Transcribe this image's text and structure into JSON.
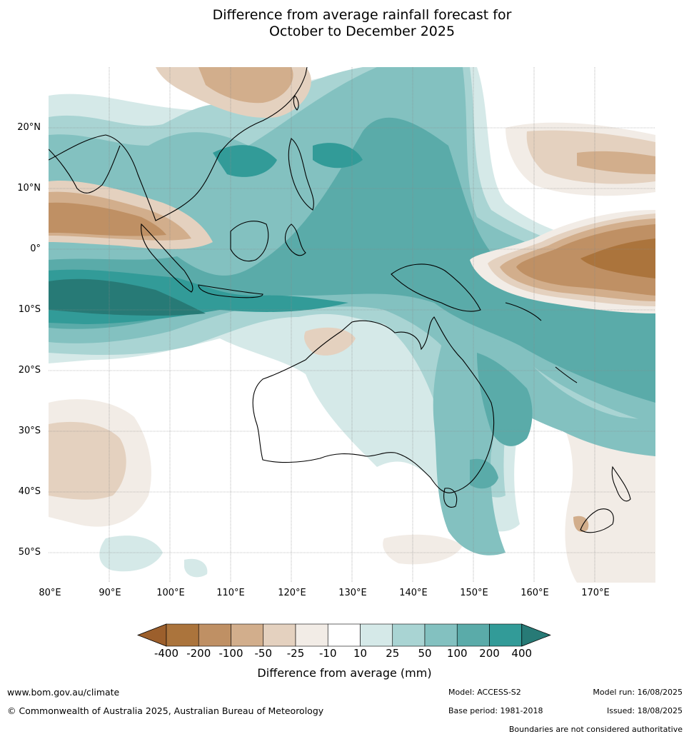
{
  "title": {
    "line1": "Difference from average rainfall forecast for",
    "line2": "October to December 2025"
  },
  "map": {
    "projection": "equirectangular",
    "lon_range": [
      80,
      180
    ],
    "lat_range": [
      -55,
      30
    ],
    "region": "Australia, Indian Ocean, Maritime Continent and western Pacific",
    "lat_labels": [
      "20°N",
      "10°N",
      "0°",
      "10°S",
      "20°S",
      "30°S",
      "40°S",
      "50°S"
    ],
    "lon_labels": [
      "80°E",
      "90°E",
      "100°E",
      "110°E",
      "120°E",
      "130°E",
      "140°E",
      "150°E",
      "160°E",
      "170°E"
    ],
    "gridlines": true
  },
  "colorbar": {
    "title": "Difference from average (mm)",
    "tick_labels": [
      "-400",
      "-200",
      "-100",
      "-50",
      "-25",
      "-10",
      "10",
      "25",
      "50",
      "100",
      "200",
      "400"
    ],
    "colors": [
      "#9c5f2c",
      "#ab743c",
      "#bf9064",
      "#d2ae8c",
      "#e4d1bf",
      "#f2ece6",
      "#ffffff",
      "#d5e9e8",
      "#a9d4d3",
      "#83c1c0",
      "#5aaba9",
      "#329b98",
      "#277a76"
    ],
    "extend": "both"
  },
  "footer": {
    "website": "www.bom.gov.au/climate",
    "copyright": "© Commonwealth of Australia 2025, Australian Bureau of Meteorology",
    "model": "Model: ACCESS-S2",
    "base_period": "Base period: 1981-2018",
    "model_run": "Model run: 16/08/2025",
    "issued": "Issued: 18/08/2025",
    "disclaimer": "Boundaries are not considered authoritative"
  }
}
